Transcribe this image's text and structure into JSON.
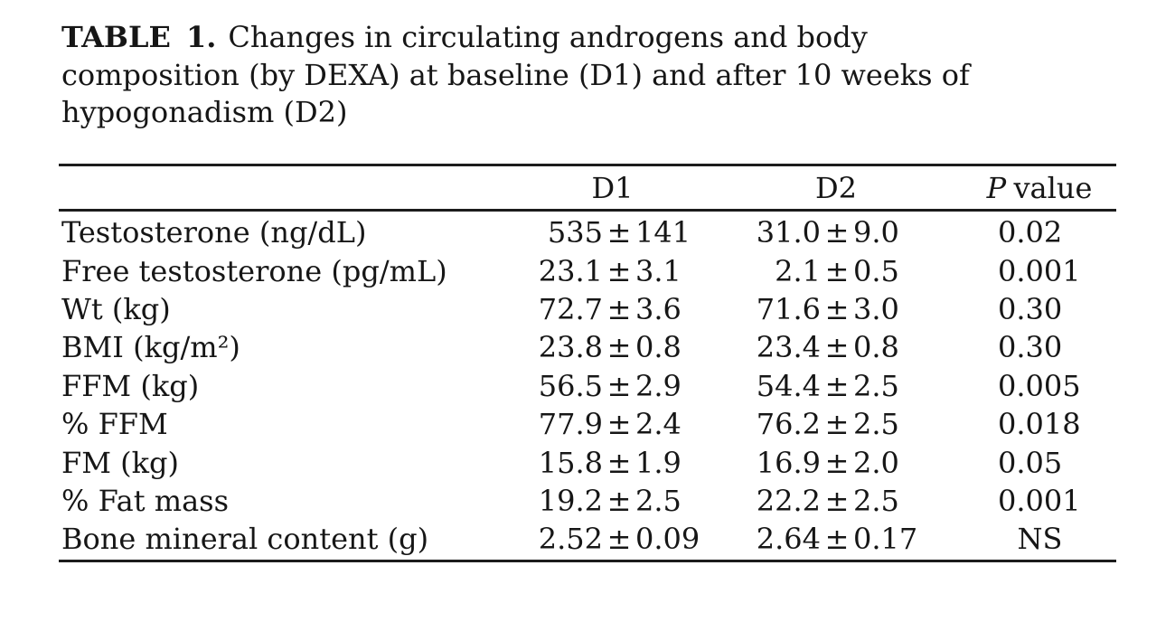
{
  "title": {
    "label": "TABLE 1.",
    "line1": "Changes in circulating androgens and body",
    "line2": "composition (by DEXA) at baseline (D1) and after 10 weeks of",
    "line3": "hypogonadism (D2)"
  },
  "table": {
    "pm_symbol": "±",
    "header": {
      "d1": "D1",
      "d2": "D2",
      "p_italic": "P",
      "p_rest": "value"
    },
    "rows": [
      {
        "label": "Testosterone (ng/dL)",
        "d1_mean": "535",
        "d1_sd": "141",
        "d2_mean": "31.0",
        "d2_sd": "9.0",
        "p": "0.02"
      },
      {
        "label": "Free testosterone (pg/mL)",
        "d1_mean": "23.1",
        "d1_sd": "3.1",
        "d2_mean": "2.1",
        "d2_sd": "0.5",
        "p": "0.001"
      },
      {
        "label": "Wt (kg)",
        "d1_mean": "72.7",
        "d1_sd": "3.6",
        "d2_mean": "71.6",
        "d2_sd": "3.0",
        "p": "0.30"
      },
      {
        "label": "BMI (kg/m²)",
        "d1_mean": "23.8",
        "d1_sd": "0.8",
        "d2_mean": "23.4",
        "d2_sd": "0.8",
        "p": "0.30"
      },
      {
        "label": "FFM (kg)",
        "d1_mean": "56.5",
        "d1_sd": "2.9",
        "d2_mean": "54.4",
        "d2_sd": "2.5",
        "p": "0.005"
      },
      {
        "label": "% FFM",
        "d1_mean": "77.9",
        "d1_sd": "2.4",
        "d2_mean": "76.2",
        "d2_sd": "2.5",
        "p": "0.018"
      },
      {
        "label": "FM (kg)",
        "d1_mean": "15.8",
        "d1_sd": "1.9",
        "d2_mean": "16.9",
        "d2_sd": "2.0",
        "p": "0.05"
      },
      {
        "label": "% Fat mass",
        "d1_mean": "19.2",
        "d1_sd": "2.5",
        "d2_mean": "22.2",
        "d2_sd": "2.5",
        "p": "0.001"
      },
      {
        "label": "Bone mineral content (g)",
        "d1_mean": "2.52",
        "d1_sd": "0.09",
        "d2_mean": "2.64",
        "d2_sd": "0.17",
        "p": "NS"
      }
    ]
  },
  "chart_data": {
    "type": "table",
    "title": "TABLE 1. Changes in circulating androgens and body composition (by DEXA) at baseline (D1) and after 10 weeks of hypogonadism (D2)",
    "columns": [
      "",
      "D1",
      "D2",
      "P value"
    ],
    "rows": [
      [
        "Testosterone (ng/dL)",
        "535 ± 141",
        "31.0 ± 9.0",
        "0.02"
      ],
      [
        "Free testosterone (pg/mL)",
        "23.1 ± 3.1",
        "2.1 ± 0.5",
        "0.001"
      ],
      [
        "Wt (kg)",
        "72.7 ± 3.6",
        "71.6 ± 3.0",
        "0.30"
      ],
      [
        "BMI (kg/m²)",
        "23.8 ± 0.8",
        "23.4 ± 0.8",
        "0.30"
      ],
      [
        "FFM (kg)",
        "56.5 ± 2.9",
        "54.4 ± 2.5",
        "0.005"
      ],
      [
        "% FFM",
        "77.9 ± 2.4",
        "76.2 ± 2.5",
        "0.018"
      ],
      [
        "FM (kg)",
        "15.8 ± 1.9",
        "16.9 ± 2.0",
        "0.05"
      ],
      [
        "% Fat mass",
        "19.2 ± 2.5",
        "22.2 ± 2.5",
        "0.001"
      ],
      [
        "Bone mineral content (g)",
        "2.52 ± 0.09",
        "2.64 ± 0.17",
        "NS"
      ]
    ]
  }
}
